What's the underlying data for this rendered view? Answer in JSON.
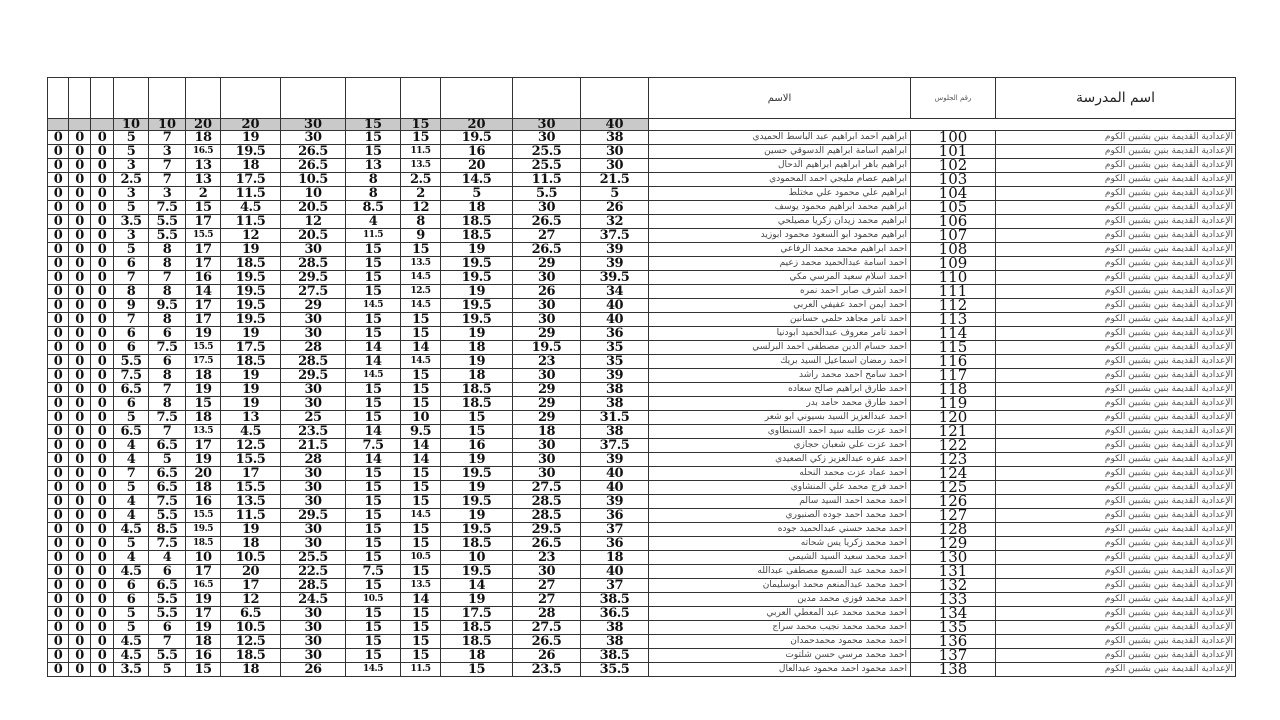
{
  "header": {
    "name_label": "الاسم",
    "seat_label": "رقم الجلوس",
    "school_label": "اسم المدرسة"
  },
  "max_marks": [
    "",
    "",
    "",
    "10",
    "10",
    "20",
    "20",
    "30",
    "15",
    "15",
    "20",
    "30",
    "40"
  ],
  "school": "الإعدادية القديمة بنين بشبين الكوم",
  "rows": [
    {
      "seat": "100",
      "name": "ابراهيم احمد ابراهيم عبد الباسط الحميدي",
      "marks": [
        "0",
        "0",
        "0",
        "5",
        "7",
        "18",
        "19",
        "30",
        "15",
        "15",
        "19.5",
        "30",
        "38"
      ]
    },
    {
      "seat": "101",
      "name": "ابراهيم اسامة ابراهيم الدسوقي حسين",
      "marks": [
        "0",
        "0",
        "0",
        "5",
        "3",
        "16.5",
        "19.5",
        "26.5",
        "15",
        "11.5",
        "16",
        "25.5",
        "30"
      ]
    },
    {
      "seat": "102",
      "name": "ابراهيم باهر ابراهيم ابراهيم الدحال",
      "marks": [
        "0",
        "0",
        "0",
        "3",
        "7",
        "13",
        "18",
        "26.5",
        "13",
        "13.5",
        "20",
        "25.5",
        "30"
      ]
    },
    {
      "seat": "103",
      "name": "ابراهيم عصام مليجي احمد المحمودي",
      "marks": [
        "0",
        "0",
        "0",
        "2.5",
        "7",
        "13",
        "17.5",
        "10.5",
        "8",
        "2.5",
        "14.5",
        "11.5",
        "21.5"
      ]
    },
    {
      "seat": "104",
      "name": "ابراهيم علي محمود علي مختلط",
      "marks": [
        "0",
        "0",
        "0",
        "3",
        "3",
        "2",
        "11.5",
        "10",
        "8",
        "2",
        "5",
        "5.5",
        "5"
      ]
    },
    {
      "seat": "105",
      "name": "ابراهيم محمد ابراهيم محمود يوسف",
      "marks": [
        "0",
        "0",
        "0",
        "5",
        "7.5",
        "15",
        "4.5",
        "20.5",
        "8.5",
        "12",
        "18",
        "30",
        "26"
      ]
    },
    {
      "seat": "106",
      "name": "ابراهيم محمد زيدان زكريا مصيلحي",
      "marks": [
        "0",
        "0",
        "0",
        "3.5",
        "5.5",
        "17",
        "11.5",
        "12",
        "4",
        "8",
        "18.5",
        "26.5",
        "32"
      ]
    },
    {
      "seat": "107",
      "name": "ابراهيم محمود ابو السعود محمود ابوزيد",
      "marks": [
        "0",
        "0",
        "0",
        "3",
        "5.5",
        "15.5",
        "12",
        "20.5",
        "11.5",
        "9",
        "18.5",
        "27",
        "37.5"
      ]
    },
    {
      "seat": "108",
      "name": "احمد ابراهيم محمد محمد الرفاعي",
      "marks": [
        "0",
        "0",
        "0",
        "5",
        "8",
        "17",
        "19",
        "30",
        "15",
        "15",
        "19",
        "26.5",
        "39"
      ]
    },
    {
      "seat": "109",
      "name": "احمد اسامة عبدالحميد محمد زعيم",
      "marks": [
        "0",
        "0",
        "0",
        "6",
        "8",
        "17",
        "18.5",
        "28.5",
        "15",
        "13.5",
        "19.5",
        "29",
        "39"
      ]
    },
    {
      "seat": "110",
      "name": "احمد اسلام سعيد المرسي مكي",
      "marks": [
        "0",
        "0",
        "0",
        "7",
        "7",
        "16",
        "19.5",
        "29.5",
        "15",
        "14.5",
        "19.5",
        "30",
        "39.5"
      ]
    },
    {
      "seat": "111",
      "name": "احمد اشرف صابر احمد نمره",
      "marks": [
        "0",
        "0",
        "0",
        "8",
        "8",
        "14",
        "19.5",
        "27.5",
        "15",
        "12.5",
        "19",
        "26",
        "34"
      ]
    },
    {
      "seat": "112",
      "name": "احمد ايمن احمد عفيفي العربي",
      "marks": [
        "0",
        "0",
        "0",
        "9",
        "9.5",
        "17",
        "19.5",
        "29",
        "14.5",
        "14.5",
        "19.5",
        "30",
        "40"
      ]
    },
    {
      "seat": "113",
      "name": "احمد تامر مجاهد حلمي حسانين",
      "marks": [
        "0",
        "0",
        "0",
        "7",
        "8",
        "17",
        "19.5",
        "30",
        "15",
        "15",
        "19.5",
        "30",
        "40"
      ]
    },
    {
      "seat": "114",
      "name": "احمد تامر معروف عبدالحميد ابودنيا",
      "marks": [
        "0",
        "0",
        "0",
        "6",
        "6",
        "19",
        "19",
        "30",
        "15",
        "15",
        "19",
        "29",
        "36"
      ]
    },
    {
      "seat": "115",
      "name": "احمد حسام الدين مصطفى احمد البرلسي",
      "marks": [
        "0",
        "0",
        "0",
        "6",
        "7.5",
        "15.5",
        "17.5",
        "28",
        "14",
        "14",
        "18",
        "19.5",
        "35"
      ]
    },
    {
      "seat": "116",
      "name": "احمد رمضان اسماعيل السيد بريك",
      "marks": [
        "0",
        "0",
        "0",
        "5.5",
        "6",
        "17.5",
        "18.5",
        "28.5",
        "14",
        "14.5",
        "19",
        "23",
        "35"
      ]
    },
    {
      "seat": "117",
      "name": "احمد سامح احمد محمد راشد",
      "marks": [
        "0",
        "0",
        "0",
        "7.5",
        "8",
        "18",
        "19",
        "29.5",
        "14.5",
        "15",
        "18",
        "30",
        "39"
      ]
    },
    {
      "seat": "118",
      "name": "احمد طارق ابراهيم صالح سعاده",
      "marks": [
        "0",
        "0",
        "0",
        "6.5",
        "7",
        "19",
        "19",
        "30",
        "15",
        "15",
        "18.5",
        "29",
        "38"
      ]
    },
    {
      "seat": "119",
      "name": "احمد طارق محمد حامد بدر",
      "marks": [
        "0",
        "0",
        "0",
        "6",
        "8",
        "15",
        "19",
        "30",
        "15",
        "15",
        "18.5",
        "29",
        "38"
      ]
    },
    {
      "seat": "120",
      "name": "احمد عبدالعزيز السيد بسيوني ابو شعر",
      "marks": [
        "0",
        "0",
        "0",
        "5",
        "7.5",
        "18",
        "13",
        "25",
        "15",
        "10",
        "15",
        "29",
        "31.5"
      ]
    },
    {
      "seat": "121",
      "name": "احمد عزت طلبه سيد احمد السنطاوي",
      "marks": [
        "0",
        "0",
        "0",
        "6.5",
        "7",
        "13.5",
        "4.5",
        "23.5",
        "14",
        "9.5",
        "15",
        "18",
        "38"
      ]
    },
    {
      "seat": "122",
      "name": "احمد عزت علي شعبان حجازي",
      "marks": [
        "0",
        "0",
        "0",
        "4",
        "6.5",
        "17",
        "12.5",
        "21.5",
        "7.5",
        "14",
        "16",
        "30",
        "37.5"
      ]
    },
    {
      "seat": "123",
      "name": "احمد عفره عبدالعزيز زكي الصعيدي",
      "marks": [
        "0",
        "0",
        "0",
        "4",
        "5",
        "19",
        "15.5",
        "28",
        "14",
        "14",
        "19",
        "30",
        "39"
      ]
    },
    {
      "seat": "124",
      "name": "احمد عماد عزت محمد النحله",
      "marks": [
        "0",
        "0",
        "0",
        "7",
        "6.5",
        "20",
        "17",
        "30",
        "15",
        "15",
        "19.5",
        "30",
        "40"
      ]
    },
    {
      "seat": "125",
      "name": "احمد فرج محمد علي المنشاوي",
      "marks": [
        "0",
        "0",
        "0",
        "5",
        "6.5",
        "18",
        "15.5",
        "30",
        "15",
        "15",
        "19",
        "27.5",
        "40"
      ]
    },
    {
      "seat": "126",
      "name": "احمد محمد احمد السيد سالم",
      "marks": [
        "0",
        "0",
        "0",
        "4",
        "7.5",
        "16",
        "13.5",
        "30",
        "15",
        "15",
        "19.5",
        "28.5",
        "39"
      ]
    },
    {
      "seat": "127",
      "name": "احمد محمد احمد جوده الصنبوري",
      "marks": [
        "0",
        "0",
        "0",
        "4",
        "5.5",
        "15.5",
        "11.5",
        "29.5",
        "15",
        "14.5",
        "19",
        "28.5",
        "36"
      ]
    },
    {
      "seat": "128",
      "name": "احمد محمد حسني عبدالحميد جوده",
      "marks": [
        "0",
        "0",
        "0",
        "4.5",
        "8.5",
        "19.5",
        "19",
        "30",
        "15",
        "15",
        "19.5",
        "29.5",
        "37"
      ]
    },
    {
      "seat": "129",
      "name": "احمد محمد زكريا يس شحاته",
      "marks": [
        "0",
        "0",
        "0",
        "5",
        "7.5",
        "18.5",
        "18",
        "30",
        "15",
        "15",
        "18.5",
        "26.5",
        "36"
      ]
    },
    {
      "seat": "130",
      "name": "احمد محمد سعيد السيد الشيمي",
      "marks": [
        "0",
        "0",
        "0",
        "4",
        "4",
        "10",
        "10.5",
        "25.5",
        "15",
        "10.5",
        "10",
        "23",
        "18"
      ]
    },
    {
      "seat": "131",
      "name": "احمد محمد عبد السميع مصطفى عبدالله",
      "marks": [
        "0",
        "0",
        "0",
        "4.5",
        "6",
        "17",
        "20",
        "22.5",
        "7.5",
        "15",
        "19.5",
        "30",
        "40"
      ]
    },
    {
      "seat": "132",
      "name": "احمد محمد عبدالمنعم محمد ابوسليمان",
      "marks": [
        "0",
        "0",
        "0",
        "6",
        "6.5",
        "16.5",
        "17",
        "28.5",
        "15",
        "13.5",
        "14",
        "27",
        "37"
      ]
    },
    {
      "seat": "133",
      "name": "احمد محمد فوزي محمد مدين",
      "marks": [
        "0",
        "0",
        "0",
        "6",
        "5.5",
        "19",
        "12",
        "24.5",
        "10.5",
        "14",
        "19",
        "27",
        "38.5"
      ]
    },
    {
      "seat": "134",
      "name": "احمد محمد محمد عبد المعطي العربي",
      "marks": [
        "0",
        "0",
        "0",
        "5",
        "5.5",
        "17",
        "6.5",
        "30",
        "15",
        "15",
        "17.5",
        "28",
        "36.5"
      ]
    },
    {
      "seat": "135",
      "name": "احمد محمد محمد نجيب محمد سراج",
      "marks": [
        "0",
        "0",
        "0",
        "5",
        "6",
        "19",
        "10.5",
        "30",
        "15",
        "15",
        "18.5",
        "27.5",
        "38"
      ]
    },
    {
      "seat": "136",
      "name": "احمد محمد محمود محمدحمدان",
      "marks": [
        "0",
        "0",
        "0",
        "4.5",
        "7",
        "18",
        "12.5",
        "30",
        "15",
        "15",
        "18.5",
        "26.5",
        "38"
      ]
    },
    {
      "seat": "137",
      "name": "احمد محمد مرسي حسن شلتوت",
      "marks": [
        "0",
        "0",
        "0",
        "4.5",
        "5.5",
        "16",
        "18.5",
        "30",
        "15",
        "15",
        "18",
        "26",
        "38.5"
      ]
    },
    {
      "seat": "138",
      "name": "احمد محمود احمد محمود عبدالعال",
      "marks": [
        "0",
        "0",
        "0",
        "3.5",
        "5",
        "15",
        "18",
        "26",
        "14.5",
        "11.5",
        "15",
        "23.5",
        "35.5"
      ]
    }
  ]
}
